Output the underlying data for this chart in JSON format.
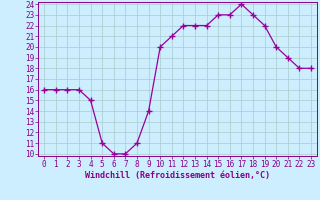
{
  "hours": [
    0,
    1,
    2,
    3,
    4,
    5,
    6,
    7,
    8,
    9,
    10,
    11,
    12,
    13,
    14,
    15,
    16,
    17,
    18,
    19,
    20,
    21,
    22,
    23
  ],
  "temps": [
    16,
    16,
    16,
    16,
    15,
    11,
    10,
    10,
    11,
    14,
    20,
    21,
    22,
    22,
    22,
    23,
    23,
    24,
    23,
    22,
    20,
    19,
    18,
    18
  ],
  "line_color": "#990099",
  "marker": "+",
  "marker_size": 4,
  "marker_lw": 1.0,
  "bg_color": "#cceeff",
  "grid_color": "#aacccc",
  "xlabel": "Windchill (Refroidissement éolien,°C)",
  "ylim": [
    10,
    24
  ],
  "xlim": [
    0,
    23
  ],
  "yticks": [
    10,
    11,
    12,
    13,
    14,
    15,
    16,
    17,
    18,
    19,
    20,
    21,
    22,
    23,
    24
  ],
  "xticks": [
    0,
    1,
    2,
    3,
    4,
    5,
    6,
    7,
    8,
    9,
    10,
    11,
    12,
    13,
    14,
    15,
    16,
    17,
    18,
    19,
    20,
    21,
    22,
    23
  ],
  "tick_color": "#880088",
  "label_color": "#880088",
  "tick_fontsize": 5.5,
  "xlabel_fontsize": 6.0,
  "line_width": 0.9
}
